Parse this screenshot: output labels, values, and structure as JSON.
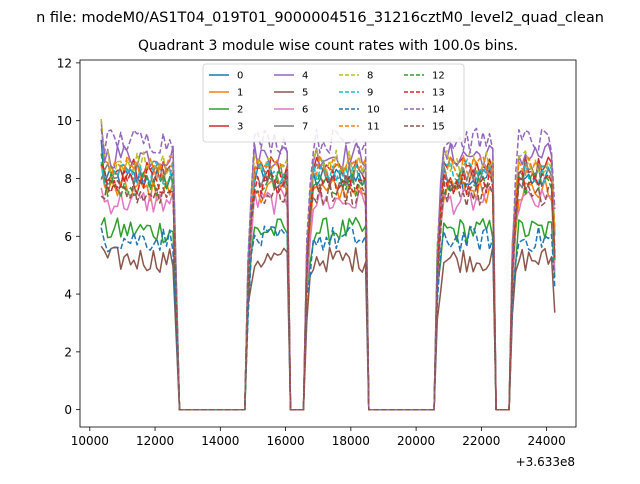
{
  "suptitle": "n file: modeM0/AS1T04_019T01_9000004516_31216cztM0_level2_quad_clean",
  "chart_data": {
    "type": "line",
    "title": "Quadrant 3 module wise count rates with 100.0s bins.",
    "xlabel": "",
    "ylabel": "",
    "xlim": [
      9700,
      24900
    ],
    "ylim": [
      -0.6,
      12.1
    ],
    "x_offset_label": "+3.633e8",
    "xticks": [
      10000,
      12000,
      14000,
      16000,
      18000,
      20000,
      22000,
      24000
    ],
    "yticks": [
      0,
      2,
      4,
      6,
      8,
      10,
      12
    ],
    "grid": false,
    "legend": {
      "placement": "top-center",
      "columns": 4
    },
    "segments": [
      {
        "start": 10350,
        "end": 12550,
        "n": 23,
        "ramp": "none"
      },
      {
        "start": 14850,
        "end": 16050,
        "n": 13,
        "ramp": "up"
      },
      {
        "start": 16650,
        "end": 18450,
        "n": 19,
        "ramp": "up"
      },
      {
        "start": 20650,
        "end": 22350,
        "n": 18,
        "ramp": "up"
      },
      {
        "start": 22950,
        "end": 24250,
        "n": 14,
        "ramp": "updown"
      }
    ],
    "gaps": [
      {
        "start": 12750,
        "end": 14750
      },
      {
        "start": 16150,
        "end": 16550
      },
      {
        "start": 18550,
        "end": 20550
      },
      {
        "start": 22450,
        "end": 22850
      }
    ],
    "series": [
      {
        "name": "0",
        "color": "#1f77b4",
        "dash": false,
        "mean": 8.0
      },
      {
        "name": "1",
        "color": "#ff7f0e",
        "dash": false,
        "mean": 7.6
      },
      {
        "name": "2",
        "color": "#2ca02c",
        "dash": false,
        "mean": 6.2
      },
      {
        "name": "3",
        "color": "#d62728",
        "dash": false,
        "mean": 8.3
      },
      {
        "name": "4",
        "color": "#9467bd",
        "dash": false,
        "mean": 8.8
      },
      {
        "name": "5",
        "color": "#8c564b",
        "dash": false,
        "mean": 5.2
      },
      {
        "name": "6",
        "color": "#e377c2",
        "dash": false,
        "mean": 7.2
      },
      {
        "name": "7",
        "color": "#7f7f7f",
        "dash": false,
        "mean": 8.1
      },
      {
        "name": "8",
        "color": "#bcbd22",
        "dash": true,
        "mean": 8.6
      },
      {
        "name": "9",
        "color": "#17becf",
        "dash": true,
        "mean": 8.2
      },
      {
        "name": "10",
        "color": "#1f77b4",
        "dash": true,
        "mean": 5.9
      },
      {
        "name": "11",
        "color": "#ff7f0e",
        "dash": true,
        "mean": 8.4
      },
      {
        "name": "12",
        "color": "#2ca02c",
        "dash": true,
        "mean": 7.8
      },
      {
        "name": "13",
        "color": "#d62728",
        "dash": true,
        "mean": 7.9
      },
      {
        "name": "14",
        "color": "#9467bd",
        "dash": true,
        "mean": 9.3
      },
      {
        "name": "15",
        "color": "#8c564b",
        "dash": true,
        "mean": 7.5
      }
    ]
  }
}
